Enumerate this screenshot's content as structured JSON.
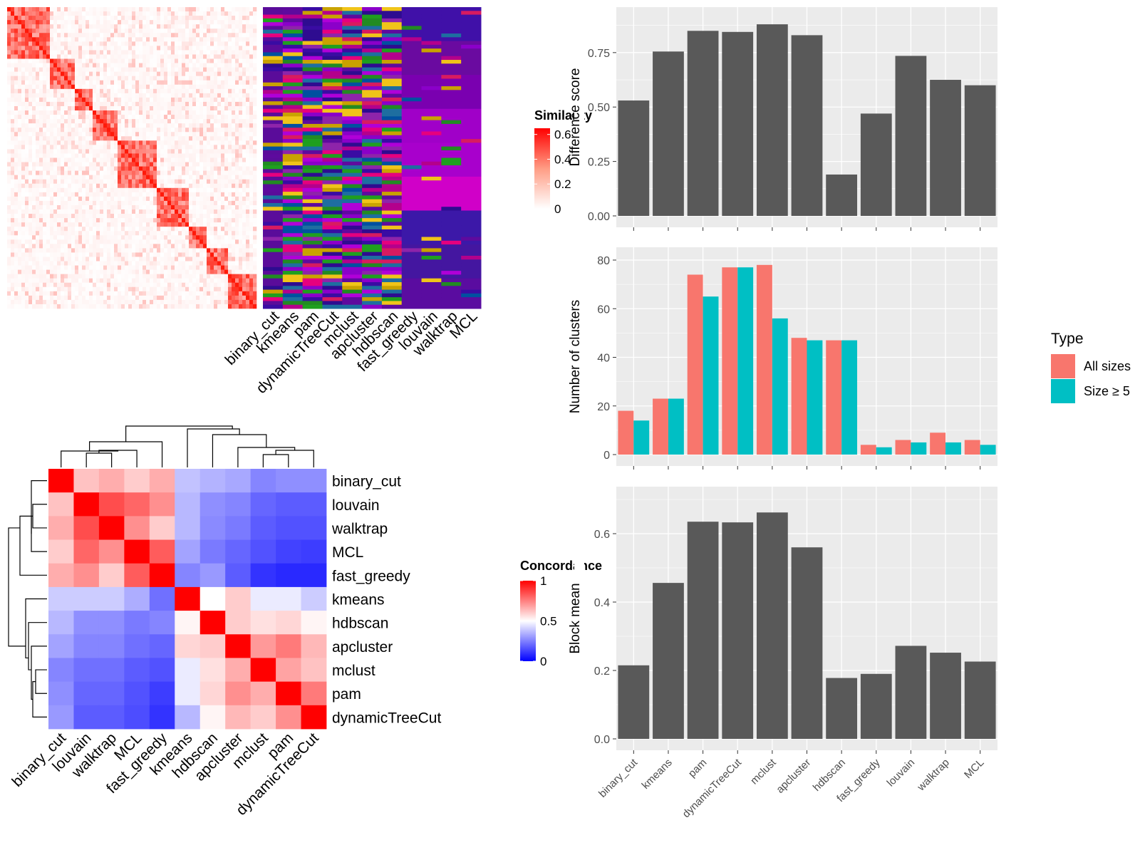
{
  "colors": {
    "panel_bg": "#EBEBEB",
    "grid": "#FFFFFF",
    "bar": "#595959",
    "all_sizes": "#F8766D",
    "size_ge5": "#00BFC4",
    "heat_high": "#FF0000",
    "heat_mid": "#FFFFFF",
    "heat_low": "#0000FF"
  },
  "chart_data": [
    {
      "type": "heatmap",
      "legend_title": "Similarity",
      "legend_ticks": [
        "0.6",
        "0.4",
        "0.2",
        "0"
      ],
      "legend_range": [
        0,
        0.65
      ],
      "method_labels": [
        "binary_cut",
        "kmeans",
        "pam",
        "dynamicTreeCut",
        "mclust",
        "apcluster",
        "hdbscan",
        "fast_greedy",
        "louvain",
        "walktrap",
        "MCL"
      ]
    },
    {
      "type": "heatmap",
      "legend_title": "Concordance",
      "legend_ticks": [
        "1",
        "0.5",
        "0"
      ],
      "legend_range": [
        0,
        1
      ],
      "rows": [
        "binary_cut",
        "louvain",
        "walktrap",
        "MCL",
        "fast_greedy",
        "kmeans",
        "hdbscan",
        "apcluster",
        "mclust",
        "pam",
        "dynamicTreeCut"
      ],
      "columns": [
        "binary_cut",
        "louvain",
        "walktrap",
        "MCL",
        "fast_greedy",
        "kmeans",
        "hdbscan",
        "apcluster",
        "mclust",
        "pam",
        "dynamicTreeCut"
      ],
      "values": [
        [
          1.0,
          0.62,
          0.66,
          0.6,
          0.66,
          0.38,
          0.35,
          0.33,
          0.26,
          0.28,
          0.28
        ],
        [
          0.62,
          1.0,
          0.85,
          0.8,
          0.72,
          0.36,
          0.28,
          0.26,
          0.2,
          0.18,
          0.18
        ],
        [
          0.66,
          0.85,
          1.0,
          0.72,
          0.6,
          0.36,
          0.27,
          0.24,
          0.18,
          0.16,
          0.16
        ],
        [
          0.6,
          0.8,
          0.72,
          1.0,
          0.82,
          0.32,
          0.24,
          0.2,
          0.16,
          0.13,
          0.12
        ],
        [
          0.66,
          0.72,
          0.6,
          0.82,
          1.0,
          0.26,
          0.3,
          0.18,
          0.1,
          0.08,
          0.08
        ],
        [
          0.4,
          0.4,
          0.4,
          0.34,
          0.22,
          1.0,
          0.5,
          0.6,
          0.46,
          0.46,
          0.4
        ],
        [
          0.36,
          0.28,
          0.28,
          0.24,
          0.26,
          0.52,
          1.0,
          0.6,
          0.56,
          0.58,
          0.52
        ],
        [
          0.32,
          0.26,
          0.26,
          0.22,
          0.2,
          0.58,
          0.6,
          1.0,
          0.7,
          0.76,
          0.64
        ],
        [
          0.26,
          0.22,
          0.22,
          0.18,
          0.16,
          0.46,
          0.56,
          0.66,
          1.0,
          0.68,
          0.62
        ],
        [
          0.28,
          0.2,
          0.2,
          0.16,
          0.12,
          0.46,
          0.58,
          0.72,
          0.66,
          1.0,
          0.76
        ],
        [
          0.3,
          0.18,
          0.18,
          0.15,
          0.1,
          0.36,
          0.52,
          0.64,
          0.6,
          0.72,
          1.0
        ]
      ]
    },
    {
      "type": "bar",
      "categories": [
        "binary_cut",
        "kmeans",
        "pam",
        "dynamicTreeCut",
        "mclust",
        "apcluster",
        "hdbscan",
        "fast_greedy",
        "louvain",
        "walktrap",
        "MCL"
      ],
      "values": [
        0.53,
        0.755,
        0.85,
        0.845,
        0.88,
        0.83,
        0.19,
        0.47,
        0.735,
        0.625,
        0.6
      ],
      "ylabel": "Difference score",
      "ylim": [
        0,
        0.9
      ],
      "yticks": [
        "0.00",
        "0.25",
        "0.50",
        "0.75"
      ],
      "grid": true
    },
    {
      "type": "bar",
      "categories": [
        "binary_cut",
        "kmeans",
        "pam",
        "dynamicTreeCut",
        "mclust",
        "apcluster",
        "hdbscan",
        "fast_greedy",
        "louvain",
        "walktrap",
        "MCL"
      ],
      "series": [
        {
          "name": "All sizes",
          "values": [
            18,
            23,
            74,
            77,
            78,
            48,
            47,
            4,
            6,
            9,
            6
          ]
        },
        {
          "name": "Size ≥ 5",
          "values": [
            14,
            23,
            65,
            77,
            56,
            47,
            47,
            3,
            5,
            5,
            4
          ]
        }
      ],
      "ylabel": "Number of clusters",
      "ylim": [
        0,
        80
      ],
      "yticks": [
        "0",
        "20",
        "40",
        "60",
        "80"
      ],
      "legend_title": "Type",
      "legend_position": "right",
      "grid": true
    },
    {
      "type": "bar",
      "categories": [
        "binary_cut",
        "kmeans",
        "pam",
        "dynamicTreeCut",
        "mclust",
        "apcluster",
        "hdbscan",
        "fast_greedy",
        "louvain",
        "walktrap",
        "MCL"
      ],
      "values": [
        0.215,
        0.456,
        0.635,
        0.633,
        0.662,
        0.56,
        0.178,
        0.19,
        0.272,
        0.252,
        0.226
      ],
      "ylabel": "Block mean",
      "ylim": [
        0,
        0.7
      ],
      "yticks": [
        "0.0",
        "0.2",
        "0.4",
        "0.6"
      ],
      "grid": true
    }
  ]
}
